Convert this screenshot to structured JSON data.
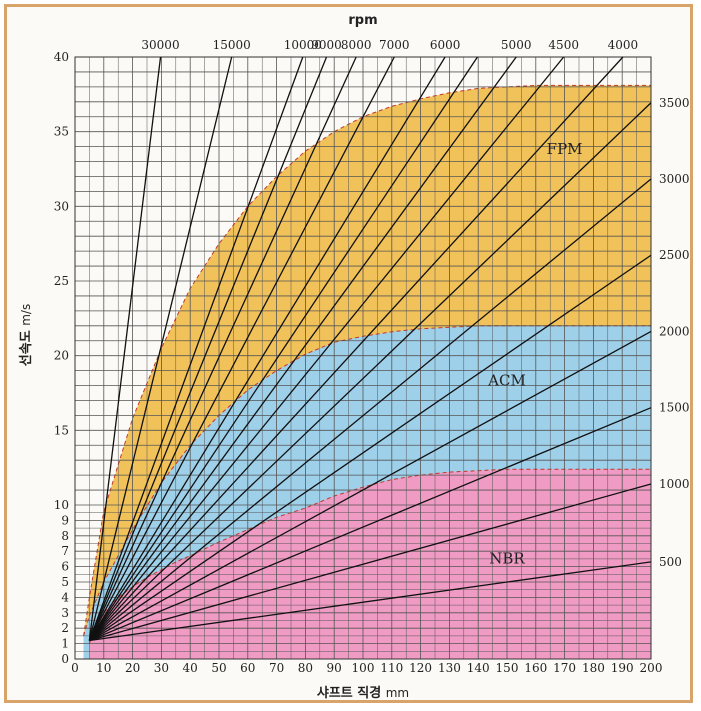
{
  "chart_data": {
    "type": "line",
    "title": "",
    "top_axis_label": "rpm",
    "xlabel": "샤프트 직경",
    "xlabel_unit": "mm",
    "ylabel": "선속도",
    "ylabel_unit": "m/s",
    "xlim": [
      0,
      200
    ],
    "ylim": [
      0,
      40
    ],
    "x_ticks": [
      0,
      10,
      20,
      30,
      40,
      50,
      60,
      70,
      80,
      90,
      100,
      110,
      120,
      130,
      140,
      150,
      160,
      170,
      180,
      190,
      200
    ],
    "y_ticks": [
      0,
      1,
      2,
      3,
      4,
      5,
      6,
      7,
      8,
      9,
      10,
      15,
      20,
      25,
      30,
      35,
      40
    ],
    "y_scale_note": "non-uniform: 0-10 then 10-40",
    "grid": true,
    "rpm_lines": [
      {
        "rpm": 30000,
        "label": "30000",
        "show_top": true
      },
      {
        "rpm": 15000,
        "label": "15000",
        "show_top": true
      },
      {
        "rpm": 10000,
        "label": "10000",
        "show_top": true
      },
      {
        "rpm": 9000,
        "label": "9000",
        "show_top": true
      },
      {
        "rpm": 8000,
        "label": "8000",
        "show_top": true
      },
      {
        "rpm": 7000,
        "label": "7000",
        "show_top": true
      },
      {
        "rpm": 6000,
        "label": "6000",
        "show_top": true
      },
      {
        "rpm": 5500,
        "label": "",
        "show_top": false
      },
      {
        "rpm": 5000,
        "label": "5000",
        "show_top": true
      },
      {
        "rpm": 4500,
        "label": "4500",
        "show_top": true
      },
      {
        "rpm": 4000,
        "label": "4000",
        "show_top": true
      },
      {
        "rpm": 3500,
        "label": "3500",
        "show_right": true
      },
      {
        "rpm": 3000,
        "label": "3000",
        "show_right": true
      },
      {
        "rpm": 2500,
        "label": "2500",
        "show_right": true
      },
      {
        "rpm": 2000,
        "label": "2000",
        "show_right": true
      },
      {
        "rpm": 1500,
        "label": "1500",
        "show_right": true
      },
      {
        "rpm": 1000,
        "label": "1000",
        "show_right": true
      },
      {
        "rpm": 500,
        "label": "500",
        "show_right": true
      }
    ],
    "regions": [
      {
        "name": "FPM",
        "color": "#f2c25a",
        "label_pos": [
          170,
          33.5
        ],
        "boundary": [
          [
            3,
            1.5
          ],
          [
            5,
            4
          ],
          [
            10,
            9.6
          ],
          [
            20,
            15.8
          ],
          [
            30,
            20.5
          ],
          [
            40,
            24.5
          ],
          [
            50,
            27.5
          ],
          [
            60,
            30
          ],
          [
            70,
            32
          ],
          [
            80,
            33.7
          ],
          [
            90,
            35
          ],
          [
            100,
            36
          ],
          [
            110,
            36.7
          ],
          [
            120,
            37.2
          ],
          [
            130,
            37.6
          ],
          [
            140,
            37.9
          ],
          [
            150,
            38
          ],
          [
            160,
            38.1
          ],
          [
            200,
            38.1
          ]
        ]
      },
      {
        "name": "ACM",
        "color": "#9fd0ea",
        "label_pos": [
          150,
          18
        ],
        "boundary": [
          [
            3,
            1.5
          ],
          [
            5,
            2.8
          ],
          [
            10,
            5
          ],
          [
            20,
            8.4
          ],
          [
            30,
            11.5
          ],
          [
            40,
            14
          ],
          [
            50,
            16
          ],
          [
            60,
            17.7
          ],
          [
            70,
            19
          ],
          [
            80,
            20.1
          ],
          [
            90,
            20.9
          ],
          [
            100,
            21.3
          ],
          [
            110,
            21.6
          ],
          [
            120,
            21.8
          ],
          [
            140,
            22
          ],
          [
            200,
            22
          ]
        ]
      },
      {
        "name": "NBR",
        "color": "#ef9bc4",
        "label_pos": [
          150,
          6.2
        ],
        "boundary": [
          [
            5,
            1
          ],
          [
            8,
            2.5
          ],
          [
            10,
            3
          ],
          [
            15,
            4
          ],
          [
            20,
            4.7
          ],
          [
            25,
            5.3
          ],
          [
            30,
            5.8
          ],
          [
            35,
            6.3
          ],
          [
            40,
            6.7
          ],
          [
            50,
            7.6
          ],
          [
            60,
            8.4
          ],
          [
            70,
            9.2
          ],
          [
            80,
            9.8
          ],
          [
            90,
            10.6
          ],
          [
            100,
            11.2
          ],
          [
            110,
            11.7
          ],
          [
            120,
            12
          ],
          [
            130,
            12.2
          ],
          [
            140,
            12.3
          ],
          [
            150,
            12.4
          ],
          [
            200,
            12.4
          ]
        ]
      }
    ]
  }
}
